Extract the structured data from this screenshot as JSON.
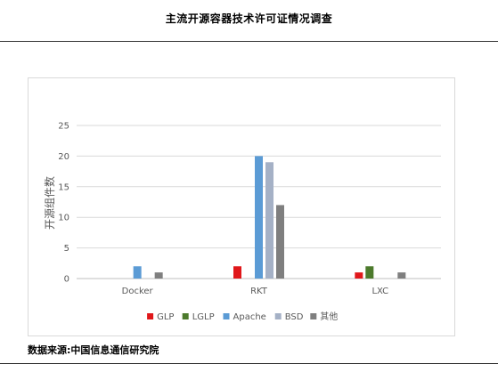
{
  "header": {
    "title": "主流开源容器技术许可证情况调查"
  },
  "footer": {
    "source": "数据来源:中国信息通信研究院"
  },
  "chart_data": {
    "type": "bar",
    "title": "",
    "xlabel": "",
    "ylabel": "开源组件数",
    "categories": [
      "Docker",
      "RKT",
      "LXC"
    ],
    "series": [
      {
        "name": "GLP",
        "color": "#e0171a",
        "values": [
          0,
          2,
          1
        ]
      },
      {
        "name": "LGLP",
        "color": "#4c7a2c",
        "values": [
          0,
          0,
          2
        ]
      },
      {
        "name": "Apache",
        "color": "#5b9bd5",
        "values": [
          2,
          20,
          0
        ]
      },
      {
        "name": "BSD",
        "color": "#a5b1c6",
        "values": [
          0,
          19,
          0
        ]
      },
      {
        "name": "其他",
        "color": "#7f7f7f",
        "values": [
          1,
          12,
          1
        ]
      }
    ],
    "ylim": [
      0,
      25
    ],
    "yticks": [
      0,
      5,
      10,
      15,
      20,
      25
    ],
    "grid": true,
    "legend": "bottom"
  }
}
